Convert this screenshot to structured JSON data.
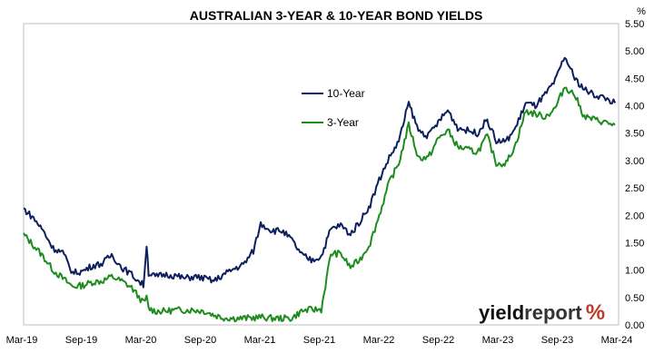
{
  "chart_data": {
    "type": "line",
    "title": "AUSTRALIAN 3-YEAR & 10-YEAR BOND YIELDS",
    "y_unit": "%",
    "ylim": [
      0,
      5.5
    ],
    "y_ticks": [
      "0.00",
      "0.50",
      "1.00",
      "1.50",
      "2.00",
      "2.50",
      "3.00",
      "3.50",
      "4.00",
      "4.50",
      "5.00",
      "5.50"
    ],
    "x_ticks": [
      "Mar-19",
      "Sep-19",
      "Mar-20",
      "Sep-20",
      "Mar-21",
      "Sep-21",
      "Mar-22",
      "Sep-22",
      "Mar-23",
      "Sep-23",
      "Mar-24"
    ],
    "x_range": [
      "2019-03-01",
      "2024-03-31"
    ],
    "grid": false,
    "legend_position": "upper-center",
    "series": [
      {
        "name": "10-Year",
        "color": "#0d1f5c",
        "points": [
          [
            "2019-03-01",
            2.12
          ],
          [
            "2019-04-01",
            1.95
          ],
          [
            "2019-05-01",
            1.72
          ],
          [
            "2019-06-01",
            1.4
          ],
          [
            "2019-07-01",
            1.32
          ],
          [
            "2019-08-01",
            0.95
          ],
          [
            "2019-09-01",
            0.98
          ],
          [
            "2019-10-01",
            1.08
          ],
          [
            "2019-11-01",
            1.12
          ],
          [
            "2019-12-01",
            1.28
          ],
          [
            "2020-01-01",
            1.05
          ],
          [
            "2020-02-01",
            0.92
          ],
          [
            "2020-03-09",
            0.72
          ],
          [
            "2020-03-19",
            1.48
          ],
          [
            "2020-03-25",
            0.95
          ],
          [
            "2020-04-15",
            0.88
          ],
          [
            "2020-05-15",
            0.92
          ],
          [
            "2020-06-15",
            0.9
          ],
          [
            "2020-07-15",
            0.85
          ],
          [
            "2020-08-15",
            0.88
          ],
          [
            "2020-09-15",
            0.85
          ],
          [
            "2020-10-15",
            0.8
          ],
          [
            "2020-11-15",
            0.92
          ],
          [
            "2020-12-15",
            1.02
          ],
          [
            "2021-01-15",
            1.1
          ],
          [
            "2021-02-15",
            1.35
          ],
          [
            "2021-03-10",
            1.85
          ],
          [
            "2021-04-15",
            1.72
          ],
          [
            "2021-05-15",
            1.72
          ],
          [
            "2021-06-15",
            1.55
          ],
          [
            "2021-07-15",
            1.28
          ],
          [
            "2021-08-15",
            1.18
          ],
          [
            "2021-09-15",
            1.25
          ],
          [
            "2021-10-15",
            1.75
          ],
          [
            "2021-11-15",
            1.82
          ],
          [
            "2021-12-15",
            1.65
          ],
          [
            "2022-01-15",
            1.9
          ],
          [
            "2022-02-15",
            2.2
          ],
          [
            "2022-03-15",
            2.65
          ],
          [
            "2022-04-15",
            3.05
          ],
          [
            "2022-05-15",
            3.35
          ],
          [
            "2022-06-15",
            4.05
          ],
          [
            "2022-07-15",
            3.55
          ],
          [
            "2022-08-15",
            3.45
          ],
          [
            "2022-09-15",
            3.7
          ],
          [
            "2022-10-15",
            3.92
          ],
          [
            "2022-11-15",
            3.6
          ],
          [
            "2022-12-15",
            3.55
          ],
          [
            "2023-01-15",
            3.5
          ],
          [
            "2023-02-15",
            3.75
          ],
          [
            "2023-03-15",
            3.35
          ],
          [
            "2023-04-15",
            3.35
          ],
          [
            "2023-05-15",
            3.6
          ],
          [
            "2023-06-15",
            4.05
          ],
          [
            "2023-07-15",
            4.0
          ],
          [
            "2023-08-15",
            4.2
          ],
          [
            "2023-09-15",
            4.45
          ],
          [
            "2023-10-15",
            4.9
          ],
          [
            "2023-11-15",
            4.5
          ],
          [
            "2023-12-15",
            4.3
          ],
          [
            "2024-01-15",
            4.2
          ],
          [
            "2024-02-15",
            4.15
          ],
          [
            "2024-03-20",
            4.05
          ]
        ]
      },
      {
        "name": "3-Year",
        "color": "#1e8c1e",
        "points": [
          [
            "2019-03-01",
            1.65
          ],
          [
            "2019-04-01",
            1.45
          ],
          [
            "2019-05-01",
            1.25
          ],
          [
            "2019-06-01",
            1.0
          ],
          [
            "2019-07-01",
            0.85
          ],
          [
            "2019-08-01",
            0.7
          ],
          [
            "2019-09-01",
            0.72
          ],
          [
            "2019-10-01",
            0.78
          ],
          [
            "2019-11-01",
            0.8
          ],
          [
            "2019-12-01",
            0.88
          ],
          [
            "2020-01-01",
            0.8
          ],
          [
            "2020-02-01",
            0.68
          ],
          [
            "2020-03-09",
            0.4
          ],
          [
            "2020-03-19",
            0.5
          ],
          [
            "2020-03-25",
            0.3
          ],
          [
            "2020-04-15",
            0.25
          ],
          [
            "2020-05-15",
            0.25
          ],
          [
            "2020-06-15",
            0.27
          ],
          [
            "2020-07-15",
            0.27
          ],
          [
            "2020-08-15",
            0.27
          ],
          [
            "2020-09-15",
            0.25
          ],
          [
            "2020-10-15",
            0.18
          ],
          [
            "2020-11-15",
            0.13
          ],
          [
            "2020-12-15",
            0.12
          ],
          [
            "2021-01-15",
            0.12
          ],
          [
            "2021-02-15",
            0.13
          ],
          [
            "2021-03-10",
            0.14
          ],
          [
            "2021-04-15",
            0.12
          ],
          [
            "2021-05-15",
            0.12
          ],
          [
            "2021-06-15",
            0.12
          ],
          [
            "2021-07-15",
            0.25
          ],
          [
            "2021-08-15",
            0.28
          ],
          [
            "2021-09-15",
            0.28
          ],
          [
            "2021-10-15",
            1.3
          ],
          [
            "2021-11-15",
            1.3
          ],
          [
            "2021-12-15",
            1.05
          ],
          [
            "2022-01-15",
            1.2
          ],
          [
            "2022-02-15",
            1.5
          ],
          [
            "2022-03-15",
            2.0
          ],
          [
            "2022-04-15",
            2.6
          ],
          [
            "2022-05-15",
            2.95
          ],
          [
            "2022-06-15",
            3.65
          ],
          [
            "2022-07-15",
            3.05
          ],
          [
            "2022-08-15",
            3.05
          ],
          [
            "2022-09-15",
            3.4
          ],
          [
            "2022-10-15",
            3.55
          ],
          [
            "2022-11-15",
            3.25
          ],
          [
            "2022-12-15",
            3.2
          ],
          [
            "2023-01-15",
            3.15
          ],
          [
            "2023-02-15",
            3.45
          ],
          [
            "2023-03-15",
            2.95
          ],
          [
            "2023-04-15",
            2.95
          ],
          [
            "2023-05-15",
            3.3
          ],
          [
            "2023-06-15",
            3.9
          ],
          [
            "2023-07-15",
            3.85
          ],
          [
            "2023-08-15",
            3.8
          ],
          [
            "2023-09-15",
            3.95
          ],
          [
            "2023-10-15",
            4.35
          ],
          [
            "2023-11-15",
            4.2
          ],
          [
            "2023-12-15",
            3.8
          ],
          [
            "2024-01-15",
            3.75
          ],
          [
            "2024-02-15",
            3.7
          ],
          [
            "2024-03-20",
            3.65
          ]
        ]
      }
    ]
  },
  "branding": {
    "text_yield": "yield",
    "text_report": "report",
    "text_pct": "%"
  }
}
